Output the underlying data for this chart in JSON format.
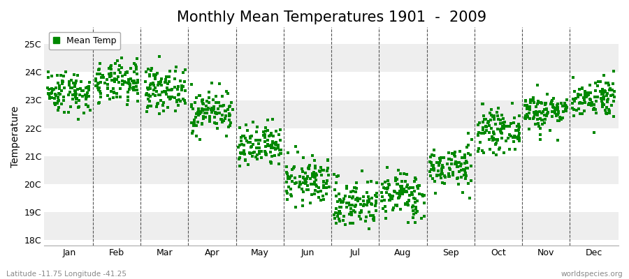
{
  "title": "Monthly Mean Temperatures 1901  -  2009",
  "ylabel": "Temperature",
  "ylim": [
    17.8,
    25.6
  ],
  "yticks": [
    18,
    19,
    20,
    21,
    22,
    23,
    24,
    25
  ],
  "ytick_labels": [
    "18C",
    "19C",
    "20C",
    "21C",
    "22C",
    "23C",
    "24C",
    "25C"
  ],
  "month_labels": [
    "Jan",
    "Feb",
    "Mar",
    "Apr",
    "May",
    "Jun",
    "Jul",
    "Aug",
    "Sep",
    "Oct",
    "Nov",
    "Dec"
  ],
  "legend_label": "Mean Temp",
  "marker_color": "#008800",
  "marker_size": 3.0,
  "subtitle_left": "Latitude -11.75 Longitude -41.25",
  "subtitle_right": "worldspecies.org",
  "mean_temps": [
    23.3,
    23.6,
    23.4,
    22.6,
    21.3,
    20.1,
    19.3,
    19.6,
    20.6,
    21.9,
    22.6,
    23.1
  ],
  "std_temps": [
    0.38,
    0.38,
    0.38,
    0.38,
    0.4,
    0.42,
    0.45,
    0.43,
    0.38,
    0.36,
    0.34,
    0.36
  ],
  "n_years": 109,
  "background_color": "#ffffff",
  "band_colors": [
    "#eeeeee",
    "#ffffff"
  ],
  "title_fontsize": 15,
  "axis_fontsize": 10,
  "tick_fontsize": 9
}
